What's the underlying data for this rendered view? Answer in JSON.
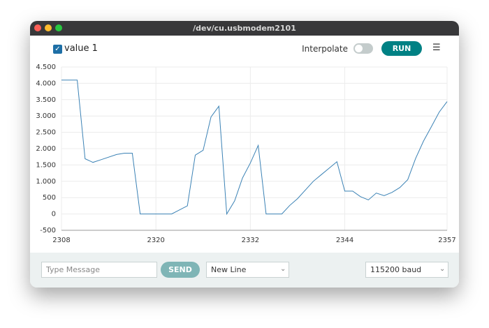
{
  "window": {
    "title": "/dev/cu.usbmodem2101"
  },
  "toolbar": {
    "interpolate_label": "Interpolate",
    "run_button": "RUN"
  },
  "footer": {
    "message_placeholder": "Type Message",
    "send_button": "SEND",
    "line_ending": "New Line",
    "baud_rate": "115200 baud"
  },
  "chart_data": {
    "type": "line",
    "x": [
      2308,
      2310,
      2311,
      2312,
      2313,
      2315,
      2316,
      2317,
      2318,
      2322,
      2324,
      2325,
      2326,
      2327,
      2328,
      2329,
      2330,
      2331,
      2332,
      2333,
      2334,
      2336,
      2337,
      2338,
      2340,
      2341,
      2342,
      2343,
      2344,
      2345,
      2346,
      2347,
      2348,
      2349,
      2350,
      2351,
      2352,
      2353,
      2354,
      2355,
      2356,
      2357
    ],
    "series": [
      {
        "name": "value 1",
        "color": "#3b82b5",
        "values": [
          4100,
          4100,
          1690,
          1580,
          1660,
          1820,
          1860,
          1860,
          0,
          0,
          250,
          1800,
          1950,
          2970,
          3300,
          0,
          400,
          1100,
          1560,
          2100,
          0,
          0,
          260,
          470,
          1000,
          1200,
          1400,
          1600,
          700,
          700,
          530,
          430,
          640,
          560,
          660,
          810,
          1050,
          1700,
          2230,
          2670,
          3120,
          3440
        ]
      }
    ],
    "xlim": [
      2308,
      2357
    ],
    "xticks": [
      2308,
      2320,
      2332,
      2344,
      2357
    ],
    "ylim": [
      -500,
      4500
    ],
    "yticks": [
      -500,
      0,
      500,
      {
        "value": 1000,
        "label": "1.000"
      },
      {
        "value": 1500,
        "label": "1.500"
      },
      {
        "value": 2000,
        "label": "2.000"
      },
      {
        "value": 2500,
        "label": "2.500"
      },
      {
        "value": 3000,
        "label": "3.000"
      },
      {
        "value": 3500,
        "label": "3.500"
      },
      {
        "value": 4000,
        "label": "4.000"
      },
      {
        "value": 4500,
        "label": "4.500"
      }
    ],
    "grid": true
  }
}
